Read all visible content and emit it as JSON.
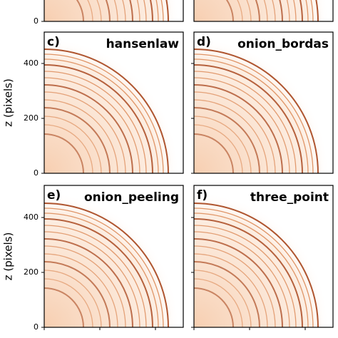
{
  "top_row": {
    "yticks": [
      0
    ]
  },
  "y_label": "z (pixels)",
  "yticks": [
    0,
    200,
    400
  ],
  "panels": [
    {
      "label": "c)",
      "title": "hansenlaw"
    },
    {
      "label": "d)",
      "title": "onion_bordas"
    },
    {
      "label": "e)",
      "title": "onion_peeling"
    },
    {
      "label": "f)",
      "title": "three_point"
    }
  ]
}
